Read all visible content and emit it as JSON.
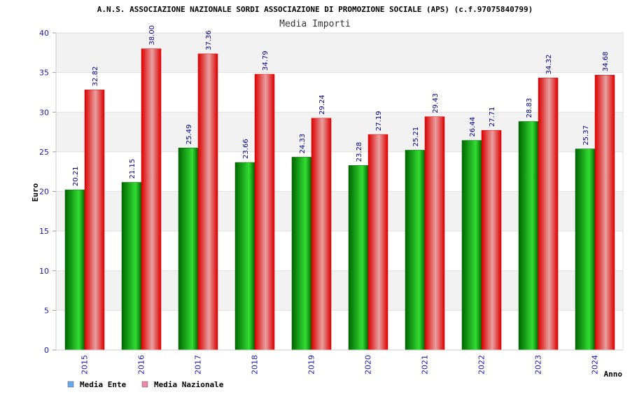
{
  "chart_data": {
    "type": "bar",
    "title": "A.N.S. ASSOCIAZIONE NAZIONALE SORDI ASSOCIAZIONE DI PROMOZIONE SOCIALE (APS) (c.f.97075840799)",
    "subtitle": "Media Importi",
    "xlabel": "Anno",
    "ylabel": "Euro",
    "ylim": [
      0,
      40
    ],
    "yticks": [
      0,
      5,
      10,
      15,
      20,
      25,
      30,
      35,
      40
    ],
    "grid": true,
    "legend_position": "bottom-left",
    "categories": [
      "2015",
      "2016",
      "2017",
      "2018",
      "2019",
      "2020",
      "2021",
      "2022",
      "2023",
      "2024"
    ],
    "series": [
      {
        "name": "Media Ente",
        "values": [
          20.21,
          21.15,
          25.49,
          23.66,
          24.33,
          23.28,
          25.21,
          26.44,
          28.83,
          25.37
        ],
        "labels": [
          "20.21",
          "21.15",
          "25.49",
          "23.66",
          "24.33",
          "23.28",
          "25.21",
          "26.44",
          "28.83",
          "25.37"
        ]
      },
      {
        "name": "Media Nazionale",
        "values": [
          32.82,
          38.0,
          37.36,
          34.79,
          29.24,
          27.19,
          29.43,
          27.71,
          34.32,
          34.68
        ],
        "labels": [
          "32.82",
          "38.00",
          "37.36",
          "34.79",
          "29.24",
          "27.19",
          "29.43",
          "27.71",
          "34.32",
          "34.68"
        ]
      }
    ],
    "colors": {
      "ente_dark": "#006600",
      "ente_light": "#33dd33",
      "naz_dark": "#dd0000",
      "naz_light": "#e8a0a0",
      "legend_ente": "#66aaee",
      "legend_naz": "#ee88aa",
      "band_grey": "#f2f2f2",
      "band_white": "#ffffff"
    }
  }
}
